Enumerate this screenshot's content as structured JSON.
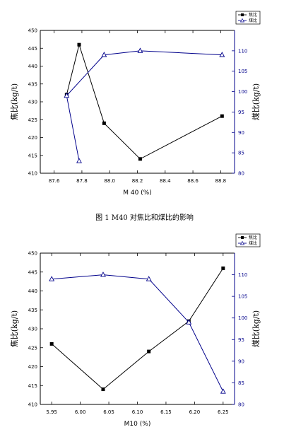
{
  "chart_data": [
    {
      "type": "line",
      "caption": "图 1 M40 对焦比和煤比的影响",
      "xlabel": "M 40 (%)",
      "ylabel_left": "焦比(kg/t)",
      "ylabel_right": "煤比(kg/t)",
      "xlim": [
        87.5,
        88.9
      ],
      "xticks": [
        "87.6",
        "87.8",
        "88.0",
        "88.2",
        "88.4",
        "88.6",
        "88.8"
      ],
      "ylim_left": [
        410,
        450
      ],
      "yticks_left": [
        "410",
        "415",
        "420",
        "425",
        "430",
        "435",
        "440",
        "445",
        "450"
      ],
      "ylim_right": [
        80,
        115
      ],
      "yticks_right": [
        "80",
        "85",
        "90",
        "95",
        "100",
        "105",
        "110"
      ],
      "legend": {
        "position": "top-right",
        "entries": [
          "焦比",
          "煤比"
        ]
      },
      "series": [
        {
          "name": "焦比",
          "axis": "left",
          "marker": "square",
          "color": "#000000",
          "points": [
            [
              87.69,
              432
            ],
            [
              87.78,
              446
            ],
            [
              87.96,
              424
            ],
            [
              88.22,
              414
            ],
            [
              88.81,
              426
            ]
          ]
        },
        {
          "name": "煤比",
          "axis": "right",
          "marker": "triangle",
          "color": "#00008b",
          "points": [
            [
              87.78,
              83
            ],
            [
              87.69,
              99
            ],
            [
              87.96,
              109
            ],
            [
              88.22,
              110
            ],
            [
              88.81,
              109
            ]
          ]
        }
      ]
    },
    {
      "type": "line",
      "caption": "",
      "xlabel": "M10 (%)",
      "ylabel_left": "焦比(kg/t)",
      "ylabel_right": "煤比(kg/t)",
      "xlim": [
        5.93,
        6.27
      ],
      "xticks": [
        "5.95",
        "6.00",
        "6.05",
        "6.10",
        "6.15",
        "6.20",
        "6.25"
      ],
      "ylim_left": [
        410,
        450
      ],
      "yticks_left": [
        "410",
        "415",
        "420",
        "425",
        "430",
        "435",
        "440",
        "445",
        "450"
      ],
      "ylim_right": [
        80,
        115
      ],
      "yticks_right": [
        "80",
        "85",
        "90",
        "95",
        "100",
        "105",
        "110"
      ],
      "legend": {
        "position": "top-right",
        "entries": [
          "焦比",
          "煤比"
        ]
      },
      "series": [
        {
          "name": "焦比",
          "axis": "left",
          "marker": "square",
          "color": "#000000",
          "points": [
            [
              5.95,
              426
            ],
            [
              6.04,
              414
            ],
            [
              6.12,
              424
            ],
            [
              6.19,
              432
            ],
            [
              6.25,
              446
            ]
          ]
        },
        {
          "name": "煤比",
          "axis": "right",
          "marker": "triangle",
          "color": "#00008b",
          "points": [
            [
              5.95,
              109
            ],
            [
              6.04,
              110
            ],
            [
              6.12,
              109
            ],
            [
              6.19,
              99
            ],
            [
              6.25,
              83
            ]
          ]
        }
      ]
    }
  ]
}
